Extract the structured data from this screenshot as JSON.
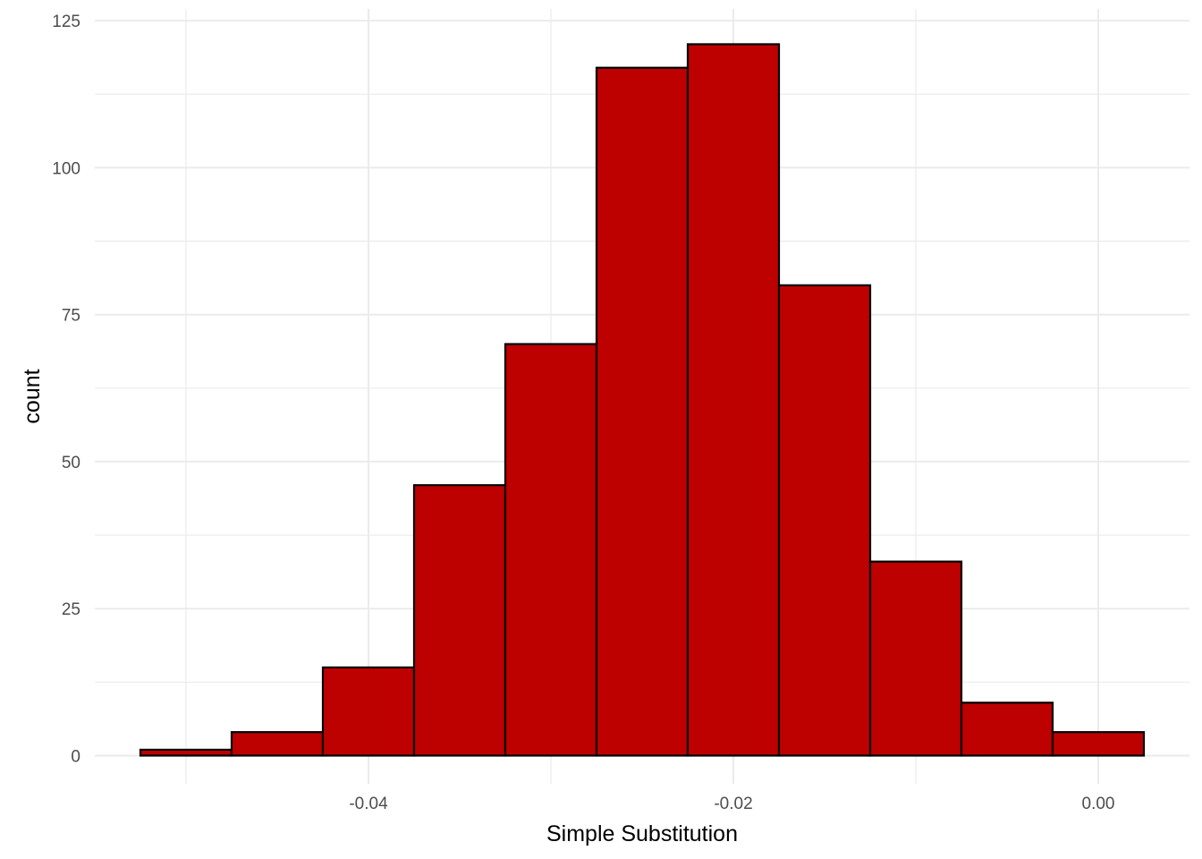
{
  "chart_data": {
    "type": "bar",
    "subtype": "histogram",
    "title": "",
    "xlabel": "Simple Substitution",
    "ylabel": "count",
    "bin_width": 0.005,
    "bins": [
      {
        "x_start": -0.0525,
        "x_end": -0.0475,
        "count": 1
      },
      {
        "x_start": -0.0475,
        "x_end": -0.0425,
        "count": 4
      },
      {
        "x_start": -0.0425,
        "x_end": -0.0375,
        "count": 15
      },
      {
        "x_start": -0.0375,
        "x_end": -0.0325,
        "count": 46
      },
      {
        "x_start": -0.0325,
        "x_end": -0.0275,
        "count": 70
      },
      {
        "x_start": -0.0275,
        "x_end": -0.0225,
        "count": 117
      },
      {
        "x_start": -0.0225,
        "x_end": -0.0175,
        "count": 121
      },
      {
        "x_start": -0.0175,
        "x_end": -0.0125,
        "count": 80
      },
      {
        "x_start": -0.0125,
        "x_end": -0.0075,
        "count": 33
      },
      {
        "x_start": -0.0075,
        "x_end": -0.0025,
        "count": 9
      },
      {
        "x_start": -0.0025,
        "x_end": 0.0025,
        "count": 4
      }
    ],
    "xlim": [
      -0.055,
      0.005
    ],
    "ylim": [
      -4.8,
      127
    ],
    "x_ticks": [
      {
        "value": -0.04,
        "label": "-0.04"
      },
      {
        "value": -0.02,
        "label": "-0.02"
      },
      {
        "value": 0.0,
        "label": "0.00"
      }
    ],
    "x_minor_ticks": [
      -0.05,
      -0.03,
      -0.01
    ],
    "y_ticks": [
      {
        "value": 0,
        "label": "0"
      },
      {
        "value": 25,
        "label": "25"
      },
      {
        "value": 50,
        "label": "50"
      },
      {
        "value": 75,
        "label": "75"
      },
      {
        "value": 100,
        "label": "100"
      },
      {
        "value": 125,
        "label": "125"
      }
    ],
    "y_minor_ticks": [
      12.5,
      37.5,
      62.5,
      87.5,
      112.5
    ],
    "grid": true,
    "legend": "none",
    "bar_fill": "#bd0000",
    "bar_outline": "#000000",
    "grid_color": "#ebebeb",
    "background": "#ffffff"
  }
}
